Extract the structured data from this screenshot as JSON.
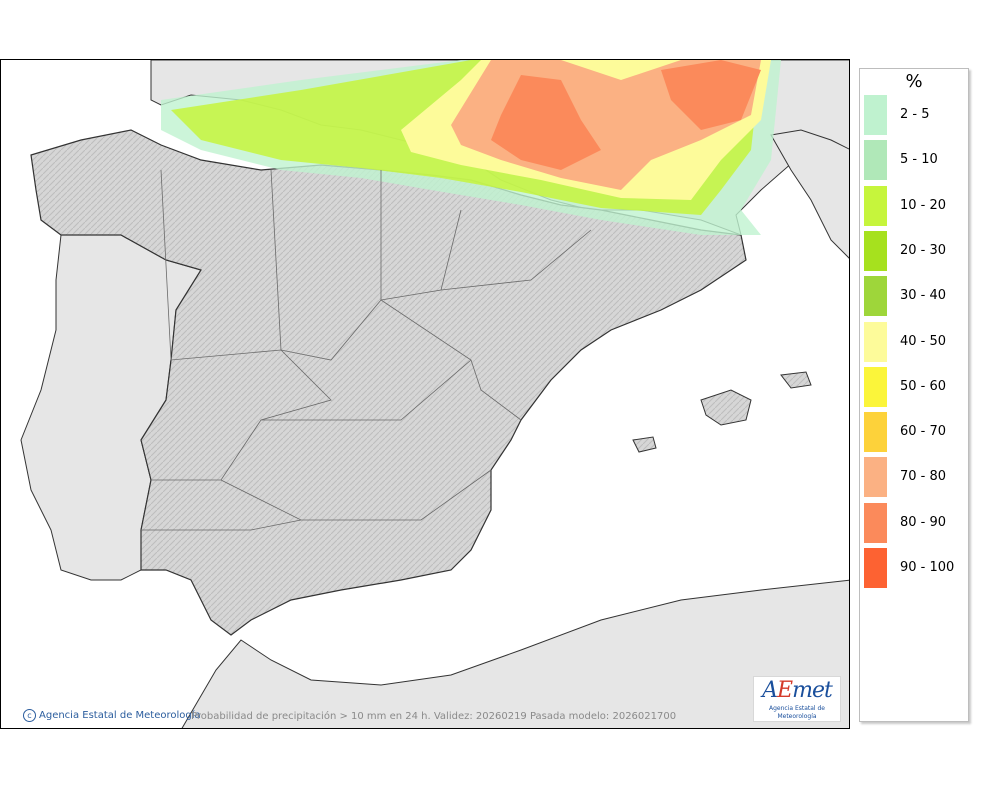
{
  "map": {
    "credit": "Agencia Estatal de Meteorología",
    "caption": "Probabilidad de precipitación > 10 mm en 24 h. Validez: 20260219 Pasada modelo: 2026021700",
    "logo": {
      "word_a": "A",
      "word_e": "E",
      "word_rest": "met",
      "subtitle": "Agencia Estatal de Meteorología"
    },
    "colors": {
      "sea": "#ffffff",
      "land_outside": "#e6e6e6",
      "land_relief": "#d4d4d4",
      "border": "#4a4a4a"
    },
    "icons": [
      "copyright-icon"
    ]
  },
  "legend": {
    "unit": "%",
    "items": [
      {
        "label": "2 - 5",
        "color": "#bff2cf"
      },
      {
        "label": "5 - 10",
        "color": "#b0e8b8"
      },
      {
        "label": "10 - 20",
        "color": "#c6f53c"
      },
      {
        "label": "20 - 30",
        "color": "#a6e11e"
      },
      {
        "label": "30 - 40",
        "color": "#9ed63a"
      },
      {
        "label": "40 - 50",
        "color": "#fdfb9a"
      },
      {
        "label": "50 - 60",
        "color": "#fbf53a"
      },
      {
        "label": "60 - 70",
        "color": "#fdd23a"
      },
      {
        "label": "70 - 80",
        "color": "#fbb183"
      },
      {
        "label": "80 - 90",
        "color": "#fb8a5b"
      },
      {
        "label": "90 - 100",
        "color": "#fd6232"
      }
    ]
  }
}
